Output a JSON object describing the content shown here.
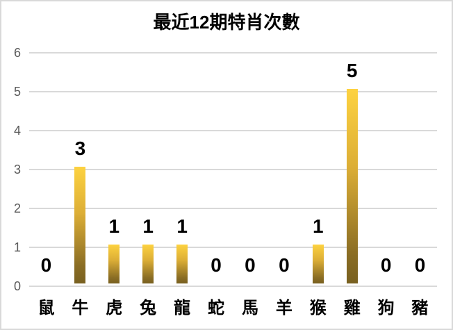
{
  "chart_data": {
    "type": "bar",
    "title": "最近12期特肖次數",
    "categories": [
      "鼠",
      "牛",
      "虎",
      "兔",
      "龍",
      "蛇",
      "馬",
      "羊",
      "猴",
      "雞",
      "狗",
      "豬"
    ],
    "values": [
      0,
      3,
      1,
      1,
      1,
      0,
      0,
      0,
      1,
      5,
      0,
      0
    ],
    "xlabel": "",
    "ylabel": "",
    "ylim": [
      0,
      6
    ],
    "yticks": [
      0,
      1,
      2,
      3,
      4,
      5,
      6
    ],
    "grid": true,
    "legend": false,
    "data_labels": true,
    "colors": {
      "bar_gradient_top": "#FDD240",
      "bar_gradient_mid": "#DCAE36",
      "bar_gradient_bottom": "#786020",
      "gridline": "#D9D9D9",
      "axis_tick_label": "#595959",
      "title_text": "#000000",
      "data_label_text": "#000000",
      "background": "#FFFFFF",
      "chart_border": "#D9D9D9"
    }
  }
}
